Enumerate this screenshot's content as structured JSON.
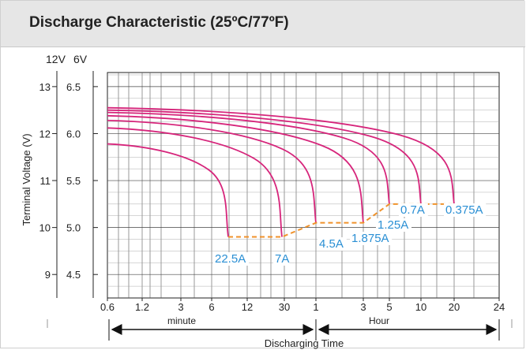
{
  "header": {
    "title": "Discharge Characteristic (25ºC/77ºF)"
  },
  "chart_data": {
    "type": "line",
    "title": "Discharge Characteristic (25ºC/77ºF)",
    "ylabel": "Terminal Voltage (V)",
    "xlabel": "Discharging Time",
    "y_scale_headers": [
      "12V",
      "6V"
    ],
    "y_ticks_12v": [
      "13",
      "12",
      "11",
      "10",
      "9"
    ],
    "y_ticks_6v": [
      "6.5",
      "6.0",
      "5.5",
      "5.0",
      "4.5"
    ],
    "ylim_12v": [
      8.5,
      13.3
    ],
    "x_ticks": [
      "0.6",
      "1.2",
      "3",
      "6",
      "12",
      "30",
      "1",
      "3",
      "5",
      "10",
      "20",
      "24"
    ],
    "x_unit_minute": "minute",
    "x_unit_hour": "Hour",
    "grid": true,
    "series": [
      {
        "name": "22.5A",
        "start_v": 11.78,
        "end_v": 9.8,
        "end_time": "8 minute",
        "color": "#d6257b"
      },
      {
        "name": "7A",
        "start_v": 12.12,
        "end_v": 9.8,
        "end_time": "30 minute",
        "color": "#d6257b"
      },
      {
        "name": "4.5A",
        "start_v": 12.28,
        "end_v": 10.1,
        "end_time": "1 Hour",
        "color": "#d6257b"
      },
      {
        "name": "1.875A",
        "start_v": 12.38,
        "end_v": 10.1,
        "end_time": "3 Hour",
        "color": "#d6257b"
      },
      {
        "name": "1.25A",
        "start_v": 12.45,
        "end_v": 10.5,
        "end_time": "5 Hour",
        "color": "#d6257b"
      },
      {
        "name": "0.7A",
        "start_v": 12.5,
        "end_v": 10.5,
        "end_time": "10 Hour",
        "color": "#d6257b"
      },
      {
        "name": "0.375A",
        "start_v": 12.55,
        "end_v": 10.5,
        "end_time": "20 Hour",
        "color": "#d6257b"
      }
    ],
    "final_voltage_line": {
      "color": "#f0922b"
    },
    "label_color": "#2a8fd4",
    "label_texts": [
      "22.5A",
      "7A",
      "4.5A",
      "1.875A",
      "1.25A",
      "0.7A",
      "0.375A"
    ]
  }
}
